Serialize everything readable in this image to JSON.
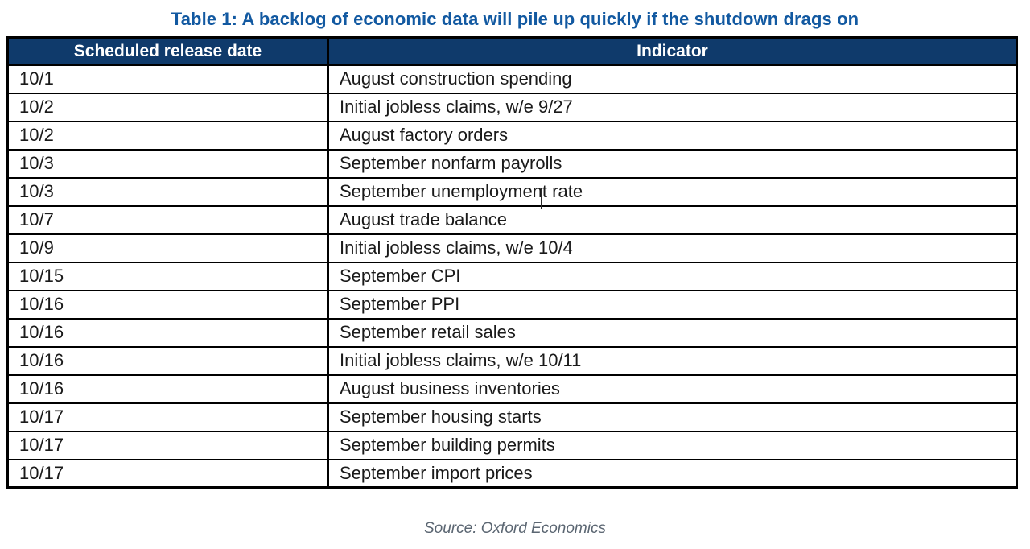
{
  "title": "Table 1: A backlog of economic data will pile up quickly if the shutdown drags on",
  "table": {
    "headers": [
      "Scheduled release date",
      "Indicator"
    ],
    "rows": [
      [
        "10/1",
        "August construction spending"
      ],
      [
        "10/2",
        "Initial jobless claims, w/e 9/27"
      ],
      [
        "10/2",
        "August factory orders"
      ],
      [
        "10/3",
        "September nonfarm payrolls"
      ],
      [
        "10/3",
        "September unemployment rate"
      ],
      [
        "10/7",
        "August trade balance"
      ],
      [
        "10/9",
        "Initial jobless claims, w/e 10/4"
      ],
      [
        "10/15",
        "September CPI"
      ],
      [
        "10/16",
        "September PPI"
      ],
      [
        "10/16",
        "September retail sales"
      ],
      [
        "10/16",
        "Initial jobless claims, w/e 10/11"
      ],
      [
        "10/16",
        "August business inventories"
      ],
      [
        "10/17",
        "September housing starts"
      ],
      [
        "10/17",
        "September building permits"
      ],
      [
        "10/17",
        "September import prices"
      ]
    ]
  },
  "source": "Source: Oxford Economics",
  "colors": {
    "title_text": "#1259a1",
    "header_background": "#0f3a6b",
    "header_text": "#ffffff",
    "table_border": "#000000",
    "body_text": "#1a1a1a",
    "source_text": "#5b6672"
  },
  "chart_data": {
    "type": "table",
    "title": "Table 1: A backlog of economic data will pile up quickly if the shutdown drags on",
    "columns": [
      "Scheduled release date",
      "Indicator"
    ],
    "rows": [
      [
        "10/1",
        "August construction spending"
      ],
      [
        "10/2",
        "Initial jobless claims, w/e 9/27"
      ],
      [
        "10/2",
        "August factory orders"
      ],
      [
        "10/3",
        "September nonfarm payrolls"
      ],
      [
        "10/3",
        "September unemployment rate"
      ],
      [
        "10/7",
        "August trade balance"
      ],
      [
        "10/9",
        "Initial jobless claims, w/e 10/4"
      ],
      [
        "10/15",
        "September CPI"
      ],
      [
        "10/16",
        "September PPI"
      ],
      [
        "10/16",
        "September retail sales"
      ],
      [
        "10/16",
        "Initial jobless claims, w/e 10/11"
      ],
      [
        "10/16",
        "August business inventories"
      ],
      [
        "10/17",
        "September housing starts"
      ],
      [
        "10/17",
        "September building permits"
      ],
      [
        "10/17",
        "September import prices"
      ]
    ],
    "source_note": "Source: Oxford Economics"
  }
}
